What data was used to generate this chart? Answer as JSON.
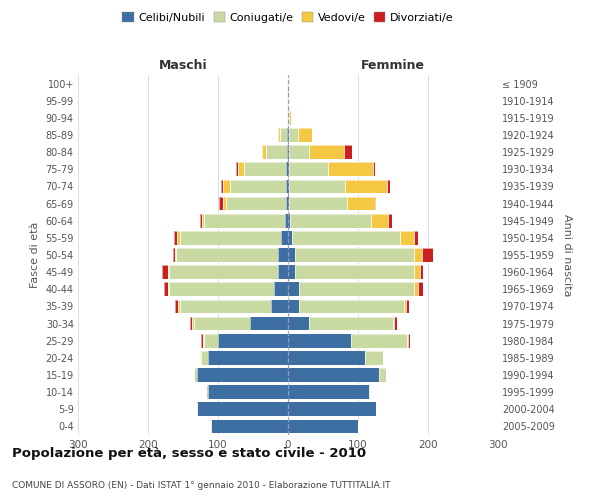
{
  "age_groups": [
    "0-4",
    "5-9",
    "10-14",
    "15-19",
    "20-24",
    "25-29",
    "30-34",
    "35-39",
    "40-44",
    "45-49",
    "50-54",
    "55-59",
    "60-64",
    "65-69",
    "70-74",
    "75-79",
    "80-84",
    "85-89",
    "90-94",
    "95-99",
    "100+"
  ],
  "birth_years": [
    "2005-2009",
    "2000-2004",
    "1995-1999",
    "1990-1994",
    "1985-1989",
    "1980-1984",
    "1975-1979",
    "1970-1974",
    "1965-1969",
    "1960-1964",
    "1955-1959",
    "1950-1954",
    "1945-1949",
    "1940-1944",
    "1935-1939",
    "1930-1934",
    "1925-1929",
    "1920-1924",
    "1915-1919",
    "1910-1914",
    "≤ 1909"
  ],
  "maschi": {
    "celibi": [
      110,
      130,
      115,
      130,
      115,
      100,
      55,
      25,
      20,
      15,
      15,
      10,
      5,
      3,
      3,
      3,
      2,
      2,
      0,
      0,
      0
    ],
    "coniugati": [
      0,
      0,
      2,
      5,
      10,
      20,
      80,
      130,
      150,
      155,
      145,
      145,
      115,
      85,
      80,
      60,
      30,
      10,
      2,
      0,
      0
    ],
    "vedovi": [
      0,
      0,
      0,
      0,
      1,
      2,
      2,
      2,
      2,
      2,
      2,
      3,
      3,
      5,
      10,
      8,
      5,
      2,
      0,
      0,
      0
    ],
    "divorziati": [
      0,
      0,
      0,
      0,
      0,
      2,
      3,
      5,
      5,
      8,
      3,
      5,
      2,
      5,
      2,
      3,
      0,
      0,
      0,
      0,
      0
    ]
  },
  "femmine": {
    "nubili": [
      100,
      125,
      115,
      130,
      110,
      90,
      30,
      15,
      15,
      10,
      10,
      5,
      3,
      2,
      2,
      2,
      2,
      2,
      0,
      0,
      0
    ],
    "coniugate": [
      0,
      0,
      2,
      10,
      25,
      80,
      120,
      150,
      165,
      170,
      170,
      155,
      115,
      82,
      80,
      55,
      28,
      12,
      2,
      0,
      0
    ],
    "vedove": [
      0,
      0,
      0,
      0,
      0,
      2,
      2,
      3,
      5,
      8,
      12,
      20,
      25,
      40,
      60,
      65,
      50,
      20,
      2,
      0,
      0
    ],
    "divorziate": [
      0,
      0,
      0,
      0,
      0,
      2,
      3,
      5,
      8,
      5,
      15,
      5,
      5,
      2,
      3,
      2,
      12,
      0,
      0,
      0,
      0
    ]
  },
  "colors": {
    "celibi": "#3e6fa3",
    "coniugati": "#c8d9a2",
    "vedovi": "#f5c844",
    "divorziati": "#cc2020"
  },
  "xlim": 300,
  "title": "Popolazione per età, sesso e stato civile - 2010",
  "subtitle": "COMUNE DI ASSORO (EN) - Dati ISTAT 1° gennaio 2010 - Elaborazione TUTTITALIA.IT",
  "ylabel_left": "Fasce di età",
  "ylabel_right": "Anni di nascita",
  "legend_labels": [
    "Celibi/Nubili",
    "Coniugati/e",
    "Vedovi/e",
    "Divorziati/e"
  ],
  "maschi_label": "Maschi",
  "femmine_label": "Femmine"
}
